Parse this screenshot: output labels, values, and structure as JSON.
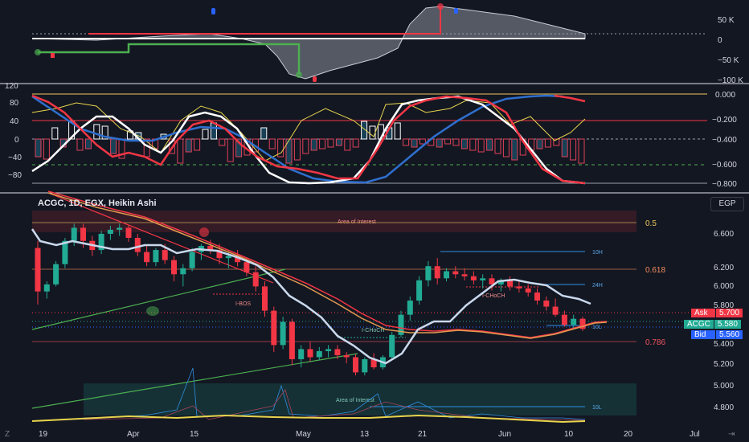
{
  "header": {
    "symbol_title": "ACGC, 1D, EGX, Heikin Ashi",
    "currency": "EGP"
  },
  "panels": {
    "top_axis_labels": [
      "50 K",
      "0",
      "−50 K",
      "−100 K"
    ],
    "mid_axis_left_labels": [
      "120",
      "80",
      "40",
      "0",
      "−40",
      "−80"
    ],
    "mid_axis_right_labels": [
      "0.000",
      "−0.200",
      "−0.400",
      "−0.600",
      "−0.800"
    ],
    "price_axis_labels": [
      "6.600",
      "6.200",
      "6.000",
      "5.800",
      "5.400",
      "5.200",
      "5.000",
      "4.800"
    ]
  },
  "time_axis": [
    "19",
    "Apr",
    "15",
    "May",
    "13",
    "21",
    "Jun",
    "10",
    "20",
    "Jul"
  ],
  "fib_labels": [
    {
      "label": "0.5",
      "color": "#f0c85a"
    },
    {
      "label": "0.618",
      "color": "#f28b5c"
    },
    {
      "label": "0.786",
      "color": "#f0545e"
    }
  ],
  "annotations": {
    "area_of_interest": "Area of Interest",
    "choch_1": "I-CHoCH",
    "choch_2": "I-CHoCH",
    "bos": "I-BOS",
    "level_10h": "10H",
    "level_24h": "24H",
    "level_10l": "10L",
    "level_10l_bottom": "10L"
  },
  "price_tags": [
    {
      "name": "Ask",
      "value": "5.700",
      "color": "#f23645"
    },
    {
      "name": "ACGC",
      "value": "5.580",
      "color": "#22ab94"
    },
    {
      "name": "Bid",
      "value": "5.560",
      "color": "#2962ff"
    }
  ],
  "footer": {
    "timezone_button": "Z",
    "goto_button": "⇥"
  },
  "chart_data": {
    "type": "candlestick",
    "price_scale": {
      "min": 4.7,
      "max": 6.75
    },
    "ohlc": [
      [
        6.38,
        6.45,
        5.82,
        5.95
      ],
      [
        5.95,
        6.05,
        5.88,
        6.02
      ],
      [
        6.02,
        6.25,
        6.0,
        6.22
      ],
      [
        6.22,
        6.48,
        6.18,
        6.45
      ],
      [
        6.45,
        6.62,
        6.4,
        6.58
      ],
      [
        6.58,
        6.62,
        6.38,
        6.45
      ],
      [
        6.45,
        6.5,
        6.3,
        6.36
      ],
      [
        6.36,
        6.55,
        6.32,
        6.52
      ],
      [
        6.52,
        6.6,
        6.46,
        6.56
      ],
      [
        6.56,
        6.62,
        6.5,
        6.58
      ],
      [
        6.58,
        6.6,
        6.44,
        6.48
      ],
      [
        6.48,
        6.52,
        6.3,
        6.34
      ],
      [
        6.34,
        6.4,
        6.2,
        6.24
      ],
      [
        6.24,
        6.38,
        6.2,
        6.36
      ],
      [
        6.36,
        6.42,
        6.22,
        6.26
      ],
      [
        6.26,
        6.3,
        6.05,
        6.12
      ],
      [
        6.12,
        6.22,
        6.0,
        6.18
      ],
      [
        6.18,
        6.38,
        6.15,
        6.34
      ],
      [
        6.34,
        6.42,
        6.26,
        6.4
      ],
      [
        6.4,
        6.46,
        6.32,
        6.36
      ],
      [
        6.36,
        6.42,
        6.22,
        6.28
      ],
      [
        6.28,
        6.34,
        6.18,
        6.3
      ],
      [
        6.3,
        6.36,
        6.2,
        6.24
      ],
      [
        6.24,
        6.28,
        6.1,
        6.14
      ],
      [
        6.14,
        6.2,
        5.95,
        6.0
      ],
      [
        6.0,
        6.05,
        5.7,
        5.76
      ],
      [
        5.76,
        5.8,
        5.35,
        5.42
      ],
      [
        5.42,
        5.7,
        5.38,
        5.65
      ],
      [
        5.65,
        5.68,
        5.22,
        5.28
      ],
      [
        5.28,
        5.42,
        5.2,
        5.38
      ],
      [
        5.38,
        5.45,
        5.26,
        5.3
      ],
      [
        5.3,
        5.4,
        5.27,
        5.36
      ],
      [
        5.36,
        5.42,
        5.3,
        5.38
      ],
      [
        5.38,
        5.42,
        5.28,
        5.32
      ],
      [
        5.32,
        5.35,
        5.24,
        5.3
      ],
      [
        5.3,
        5.33,
        5.12,
        5.15
      ],
      [
        5.15,
        5.3,
        5.12,
        5.28
      ],
      [
        5.28,
        5.34,
        5.18,
        5.2
      ],
      [
        5.2,
        5.32,
        5.18,
        5.3
      ],
      [
        5.3,
        5.55,
        5.28,
        5.52
      ],
      [
        5.52,
        5.76,
        5.5,
        5.72
      ],
      [
        5.72,
        5.9,
        5.66,
        5.86
      ],
      [
        5.86,
        6.1,
        5.82,
        6.06
      ],
      [
        6.06,
        6.25,
        6.0,
        6.2
      ],
      [
        6.2,
        6.28,
        6.02,
        6.08
      ],
      [
        6.08,
        6.18,
        6.05,
        6.15
      ],
      [
        6.15,
        6.2,
        6.08,
        6.12
      ],
      [
        6.12,
        6.18,
        6.06,
        6.1
      ],
      [
        6.1,
        6.15,
        6.02,
        6.06
      ],
      [
        6.06,
        6.12,
        5.98,
        6.08
      ],
      [
        6.08,
        6.12,
        5.96,
        6.02
      ],
      [
        6.02,
        6.08,
        5.95,
        6.06
      ],
      [
        6.06,
        6.1,
        5.96,
        6.0
      ],
      [
        6.0,
        6.06,
        5.94,
        5.98
      ],
      [
        5.98,
        6.02,
        5.9,
        5.94
      ],
      [
        5.94,
        5.98,
        5.82,
        5.86
      ],
      [
        5.86,
        5.9,
        5.76,
        5.8
      ],
      [
        5.8,
        5.88,
        5.7,
        5.72
      ],
      [
        5.72,
        5.76,
        5.6,
        5.62
      ],
      [
        5.62,
        5.72,
        5.58,
        5.68
      ],
      [
        5.68,
        5.7,
        5.56,
        5.58
      ]
    ],
    "ask": 5.7,
    "last": 5.58,
    "bid": 5.56,
    "x_labels": [
      "19",
      "Apr",
      "15",
      "May",
      "13",
      "21",
      "Jun",
      "10",
      "20",
      "Jul"
    ]
  }
}
